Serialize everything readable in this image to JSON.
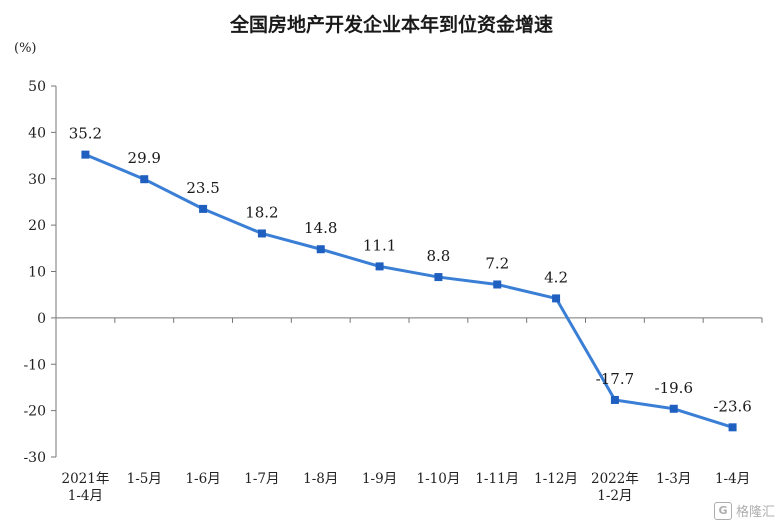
{
  "chart_data": {
    "type": "line",
    "title": "全国房地产开发企业本年到位资金增速",
    "unit_label": "(%)",
    "categories": [
      [
        "2021年",
        "1-4月"
      ],
      [
        "1-5月"
      ],
      [
        "1-6月"
      ],
      [
        "1-7月"
      ],
      [
        "1-8月"
      ],
      [
        "1-9月"
      ],
      [
        "1-10月"
      ],
      [
        "1-11月"
      ],
      [
        "1-12月"
      ],
      [
        "2022年",
        "1-2月"
      ],
      [
        "1-3月"
      ],
      [
        "1-4月"
      ]
    ],
    "values": [
      35.2,
      29.9,
      23.5,
      18.2,
      14.8,
      11.1,
      8.8,
      7.2,
      4.2,
      -17.7,
      -19.6,
      -23.6
    ],
    "data_labels": [
      "35.2",
      "29.9",
      "23.5",
      "18.2",
      "14.8",
      "11.1",
      "8.8",
      "7.2",
      "4.2",
      "-17.7",
      "-19.6",
      "-23.6"
    ],
    "ylim": [
      -30,
      50
    ],
    "yticks": [
      50,
      40,
      30,
      20,
      10,
      0,
      -10,
      -20,
      -30
    ],
    "grid": false,
    "line_color": "#3a7fd5",
    "marker_color": "#1f5fbf"
  },
  "watermark": {
    "text": "格隆汇",
    "logo_glyph": "G"
  }
}
